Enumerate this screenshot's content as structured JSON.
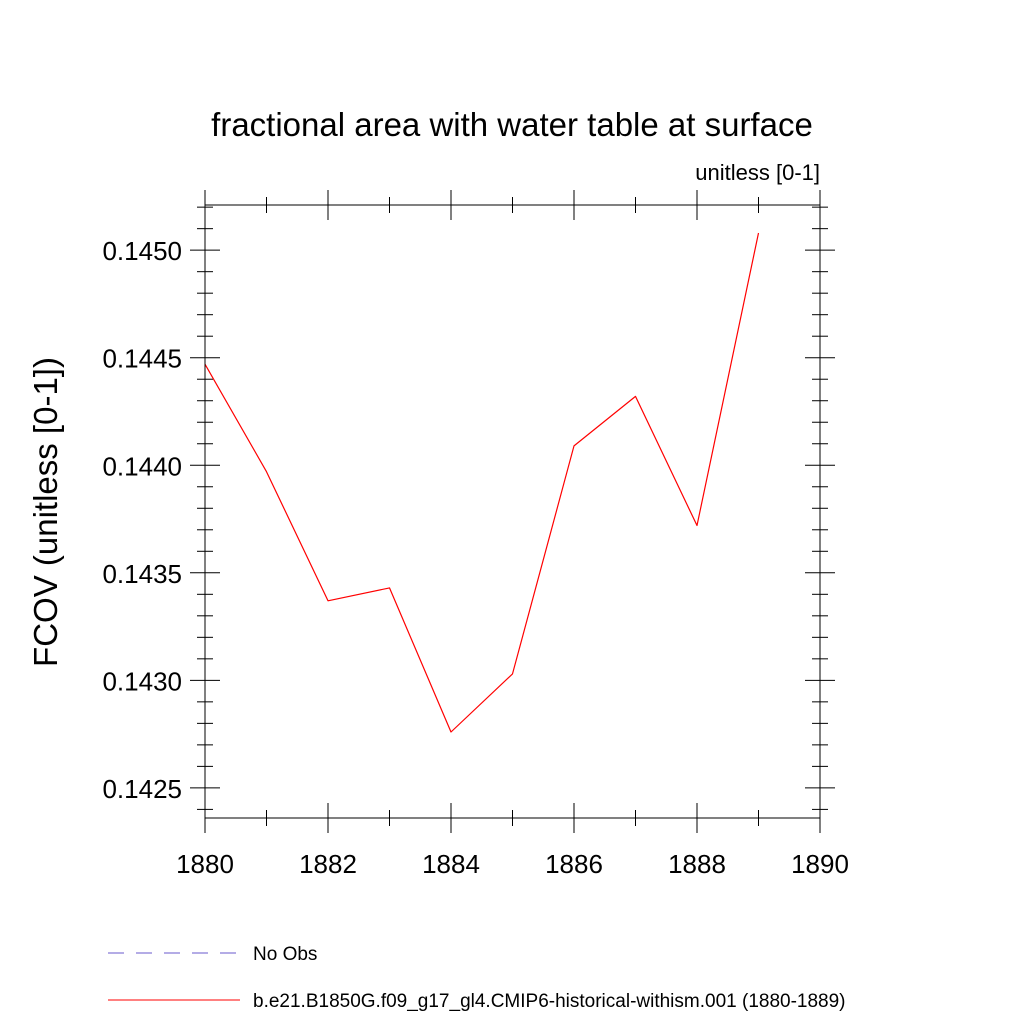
{
  "chart_data": {
    "type": "line",
    "title": "fractional area with water table at surface",
    "subtitle": "unitless [0-1]",
    "ylabel": "FCOV  (unitless [0-1])",
    "xlabel": "",
    "xlim": [
      1880,
      1890
    ],
    "ylim": [
      0.14236,
      0.14521
    ],
    "x_ticks": [
      1880,
      1882,
      1884,
      1886,
      1888,
      1890
    ],
    "x_tick_labels": [
      "1880",
      "1882",
      "1884",
      "1886",
      "1888",
      "1890"
    ],
    "y_ticks": [
      0.1425,
      0.143,
      0.1435,
      0.144,
      0.1445,
      0.145
    ],
    "y_tick_labels": [
      "0.1425",
      "0.1430",
      "0.1435",
      "0.1440",
      "0.1445",
      "0.1450"
    ],
    "y_minor_step": 0.0001,
    "x_minor_step": 1,
    "grid": false,
    "legend_position": "bottom",
    "series": [
      {
        "name": "b.e21.B1850G.f09_g17_gl4.CMIP6-historical-withism.001 (1880-1889)",
        "color": "#ff0000",
        "dash": "solid",
        "x": [
          1880,
          1881,
          1882,
          1883,
          1884,
          1885,
          1886,
          1887,
          1888,
          1889
        ],
        "y": [
          0.14447,
          0.14397,
          0.14337,
          0.14343,
          0.14276,
          0.14303,
          0.14409,
          0.14432,
          0.14372,
          0.14508
        ]
      }
    ],
    "legend": [
      {
        "label": "No Obs",
        "color": "#6a5acd",
        "dash": "dashed"
      },
      {
        "label": "b.e21.B1850G.f09_g17_gl4.CMIP6-historical-withism.001 (1880-1889)",
        "color": "#ff0000",
        "dash": "solid"
      }
    ]
  }
}
